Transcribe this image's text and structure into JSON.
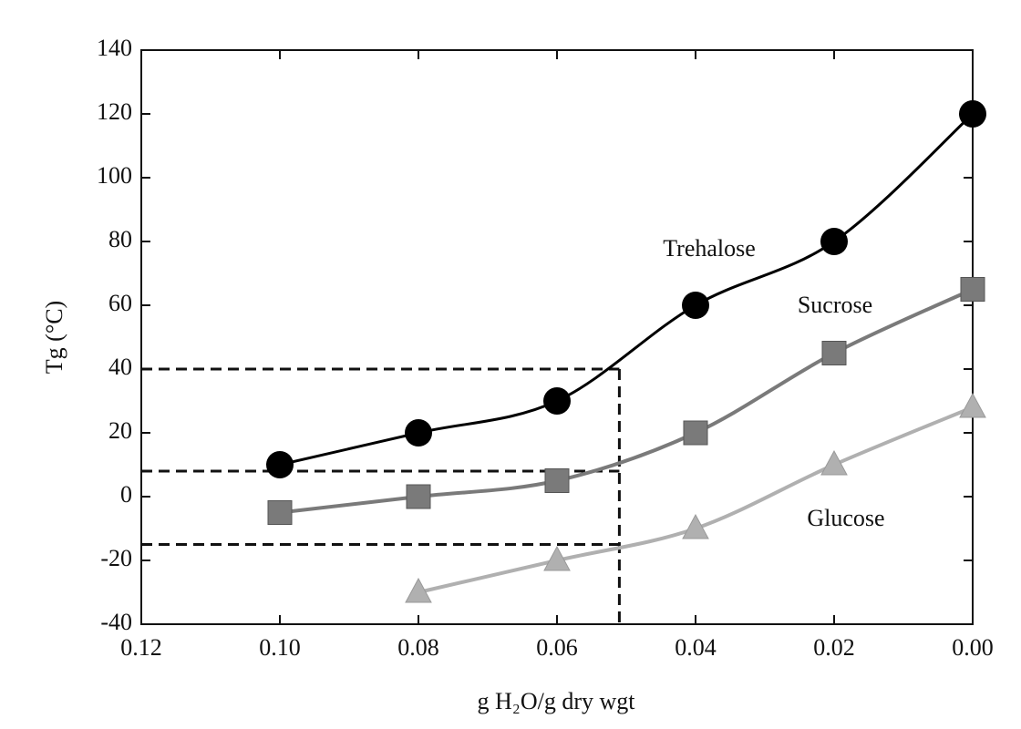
{
  "chart_data": {
    "type": "line",
    "x_label": "g H₂O/g dry wgt",
    "y_label": "Tg (°C)",
    "xlim": [
      0.12,
      0.0
    ],
    "ylim": [
      -40,
      140
    ],
    "xticks": [
      0.12,
      {
        "value": 0.1,
        "label": "0.10"
      },
      0.08,
      0.06,
      0.04,
      0.02,
      {
        "value": 0,
        "label": "0.00"
      }
    ],
    "yticks": [
      -40,
      -20,
      0,
      20,
      40,
      60,
      80,
      100,
      120,
      140
    ],
    "series": [
      {
        "name": "Trehalose",
        "color": "#000000",
        "marker": "circle",
        "x": [
          0.1,
          0.08,
          0.06,
          0.04,
          0.02,
          0.0
        ],
        "values": [
          10,
          20,
          30,
          60,
          80,
          120
        ]
      },
      {
        "name": "Sucrose",
        "color": "#7a7a7a",
        "marker": "square",
        "x": [
          0.1,
          0.08,
          0.06,
          0.04,
          0.02,
          0.0
        ],
        "values": [
          -5,
          0,
          5,
          20,
          45,
          65
        ]
      },
      {
        "name": "Glucose",
        "color": "#b0b0b0",
        "marker": "triangle",
        "x": [
          0.08,
          0.06,
          0.04,
          0.02,
          0.0
        ],
        "values": [
          -30,
          -20,
          -10,
          10,
          28
        ]
      }
    ],
    "reference_x": 0.051,
    "reference_y": [
      40,
      8,
      -15
    ]
  }
}
